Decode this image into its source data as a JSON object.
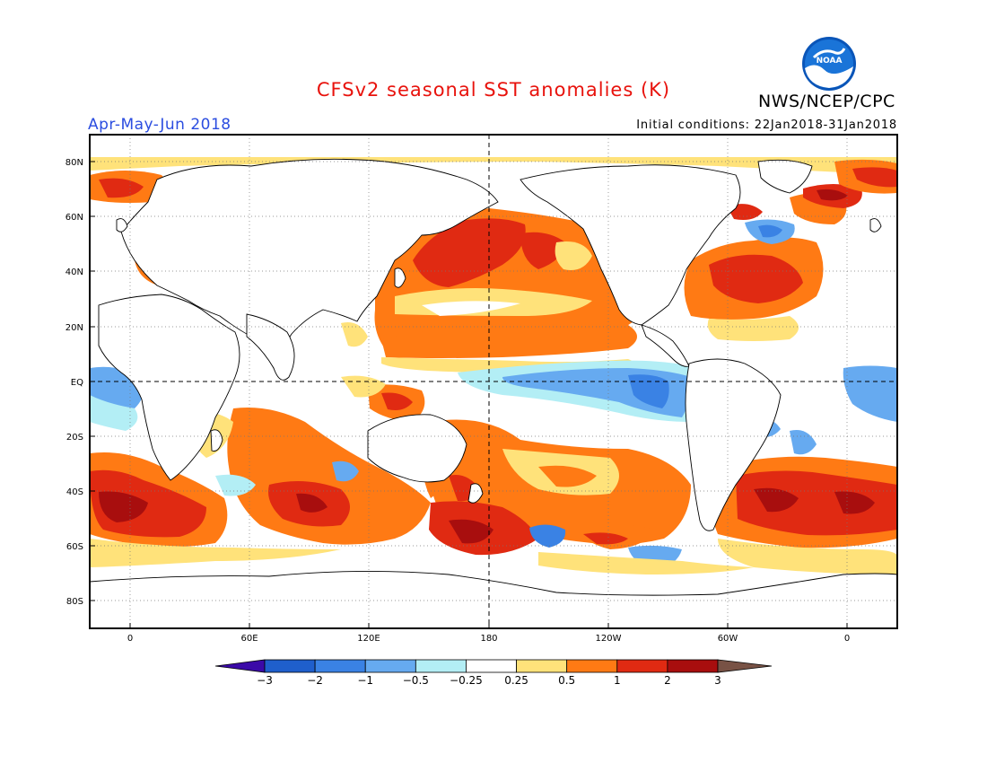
{
  "title": "CFSv2 seasonal SST anomalies (K)",
  "organization": "NWS/NCEP/CPC",
  "logo_text": "NOAA",
  "period": "Apr-May-Jun 2018",
  "initial_conditions": "Initial conditions: 22Jan2018-31Jan2018",
  "colors": {
    "title": "#e8120c",
    "period": "#2b4de0",
    "text": "#000000"
  },
  "map": {
    "projection": "cylindrical equidistant",
    "lat_labels": [
      "80N",
      "60N",
      "40N",
      "20N",
      "EQ",
      "20S",
      "40S",
      "60S",
      "80S"
    ],
    "lon_labels": [
      "0",
      "60E",
      "120E",
      "180",
      "120W",
      "60W",
      "0"
    ],
    "dashed_reference_lines": [
      "EQ",
      "180"
    ]
  },
  "colorbar": {
    "ticks": [
      "-3",
      "-2",
      "-1",
      "-0.5",
      "-0.25",
      "0.25",
      "0.5",
      "1",
      "2",
      "3"
    ],
    "colors": [
      "#3b0aa8",
      "#1f5fcc",
      "#3a82e4",
      "#66aaf0",
      "#b3eef5",
      "#ffffff",
      "#ffe27a",
      "#ff7a14",
      "#e02a12",
      "#a80e0e",
      "#785245"
    ]
  }
}
